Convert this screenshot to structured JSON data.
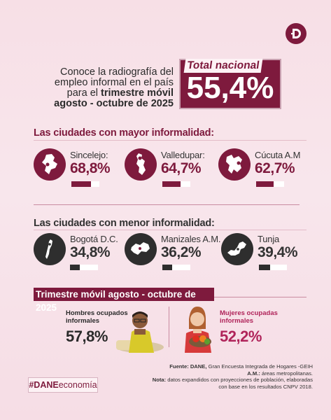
{
  "intro": {
    "line1": "Conoce la radiografía del",
    "line2": "empleo informal en el país",
    "line3_pre": "para el ",
    "line3_bold": "trimestre móvil",
    "line4_bold": "agosto - octubre de 2025"
  },
  "total": {
    "label": "Total nacional",
    "value": "55,4%"
  },
  "high": {
    "title": "Las ciudades con mayor informalidad:",
    "cities": [
      {
        "name": "Sincelejo:",
        "pct": "68,8%",
        "fill": 0.688
      },
      {
        "name": "Valledupar:",
        "pct": "64,7%",
        "fill": 0.647
      },
      {
        "name": "Cúcuta A.M",
        "pct": "62,7%",
        "fill": 0.627
      }
    ]
  },
  "low": {
    "title": "Las ciudades con menor informalidad:",
    "cities": [
      {
        "name": "Bogotá D.C.",
        "pct": "34,8%",
        "fill": 0.348
      },
      {
        "name": "Manizales A.M.",
        "pct": "36,2%",
        "fill": 0.362
      },
      {
        "name": "Tunja",
        "pct": "39,4%",
        "fill": 0.394
      }
    ]
  },
  "trimester": {
    "title": "Trimestre móvil  agosto - octubre de 2025",
    "men": {
      "label_l1": "Hombres ocupados",
      "label_l2": "informales",
      "pct": "57,8%"
    },
    "women": {
      "label_l1": "Mujeres ocupadas",
      "label_l2": "informales",
      "pct": "52,2%"
    }
  },
  "source": {
    "l1_bold": "Fuente: DANE,",
    "l1_rest": " Gran Encuesta Integrada de Hogares -GEIH",
    "l2_bold": "A.M.:",
    "l2_rest": " áreas metropolitanas.",
    "l3_bold": "Nota:",
    "l3_rest": " datos expandidos con proyecciones de población, elaboradas",
    "l4": "con base en los resultados CNPV 2018."
  },
  "hashtag": {
    "bold": "#DANE",
    "rest": "economía"
  },
  "colors": {
    "maroon": "#7e1a3d",
    "dark": "#2e2e2e",
    "background": "#f7dfe6"
  }
}
